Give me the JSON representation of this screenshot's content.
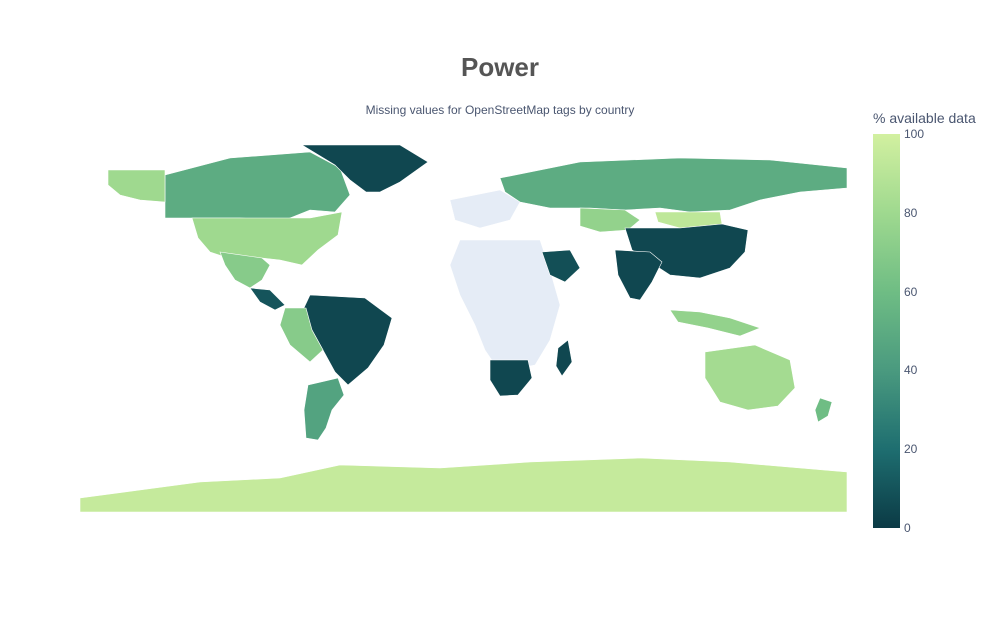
{
  "title": "Power",
  "subtitle": "Missing values for OpenStreetMap tags by country",
  "colorbar": {
    "title": "% available data",
    "min": 0,
    "max": 100,
    "ticks": [
      "0",
      "20",
      "40",
      "60",
      "80",
      "100"
    ],
    "scale": [
      "#0b3a45",
      "#1e6e70",
      "#4a9a7f",
      "#6fbd84",
      "#9fd98f",
      "#d2f0a0"
    ]
  },
  "map": {
    "projection": "equirectangular",
    "no_data_color": "#e5ecf6",
    "regions": [
      {
        "name": "Canada",
        "value": 50
      },
      {
        "name": "Alaska",
        "value": 80
      },
      {
        "name": "United States",
        "value": 80
      },
      {
        "name": "Mexico",
        "value": 70
      },
      {
        "name": "Greenland",
        "value": 5
      },
      {
        "name": "Central America",
        "value": 10
      },
      {
        "name": "Brazil",
        "value": 5
      },
      {
        "name": "Argentina",
        "value": 45
      },
      {
        "name": "Peru",
        "value": 70
      },
      {
        "name": "Antarctica",
        "value": 95
      },
      {
        "name": "Russia",
        "value": 50
      },
      {
        "name": "Kazakhstan",
        "value": 75
      },
      {
        "name": "Mongolia",
        "value": 92
      },
      {
        "name": "China",
        "value": 5
      },
      {
        "name": "India",
        "value": 5
      },
      {
        "name": "Saudi Arabia",
        "value": 8
      },
      {
        "name": "Australia",
        "value": 82
      },
      {
        "name": "Indonesia",
        "value": 75
      },
      {
        "name": "Southern Africa",
        "value": 5
      },
      {
        "name": "Madagascar",
        "value": 5
      },
      {
        "name": "New Zealand",
        "value": 60
      }
    ]
  }
}
